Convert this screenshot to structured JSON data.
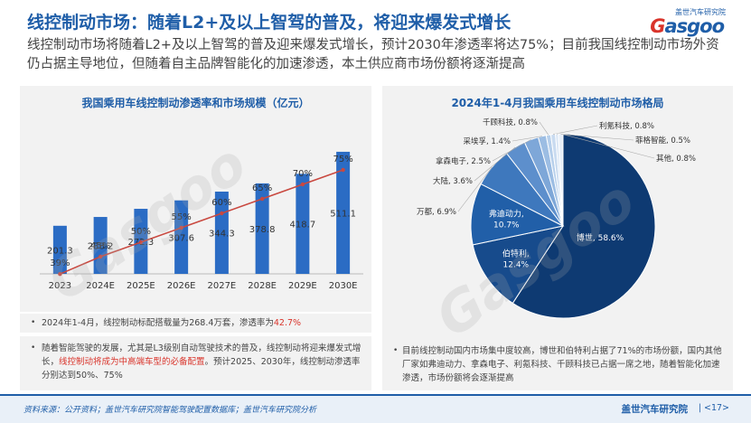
{
  "header": {
    "title": "线控制动市场：随着L2+及以上智驾的普及，将迎来爆发式增长",
    "subtitle": "线控制动市场将随着L2+及以上智驾的普及迎来爆发式增长，预计2030年渗透率将达75%；目前我国线控制动市场外资仍占据主导地位，但随着自主品牌智能化的加速渗透，本土供应商市场份额将逐渐提高"
  },
  "logo": {
    "small": "盖世汽车研究院",
    "main_g": "G",
    "main_rest": "asgoo"
  },
  "watermark": "Gasgoo",
  "chart_data": [
    {
      "type": "bar",
      "title": "我国乘用车线控制动渗透率和市场规模（亿元）",
      "categories": [
        "2023",
        "2024E",
        "2025E",
        "2026E",
        "2027E",
        "2028E",
        "2029E",
        "2030E"
      ],
      "series": [
        {
          "values": [
            201.3,
            238.2,
            272.3,
            307.6,
            344.3,
            378.8,
            418.7,
            511.1
          ],
          "color": "#2b6cc4"
        },
        {
          "type": "line",
          "values": [
            39,
            45,
            50,
            55,
            60,
            65,
            70,
            75
          ],
          "labels": [
            "39%",
            "45%",
            "50%",
            "55%",
            "60%",
            "65%",
            "70%",
            "75%"
          ],
          "color": "#c9483f"
        }
      ],
      "ylim": [
        0,
        560
      ],
      "line_ylim": [
        0,
        100
      ]
    },
    {
      "type": "pie",
      "title": "2024年1-4月我国乘用车线控制动市场格局",
      "slices": [
        {
          "label": "博世",
          "value": 58.6,
          "text": "博世, 58.6%",
          "color": "#0e3a72"
        },
        {
          "label": "伯特利",
          "value": 12.4,
          "text": "伯特利, 12.4%",
          "color": "#174b8c"
        },
        {
          "label": "弗迪动力",
          "value": 10.7,
          "text": "弗迪动力, 10.7%",
          "color": "#215fa8"
        },
        {
          "label": "万都",
          "value": 6.9,
          "text": "万都, 6.9%",
          "color": "#3e78bd"
        },
        {
          "label": "大陆",
          "value": 3.6,
          "text": "大陆, 3.6%",
          "color": "#5d8fcc"
        },
        {
          "label": "拿森电子",
          "value": 2.5,
          "text": "拿森电子, 2.5%",
          "color": "#7ea7d8"
        },
        {
          "label": "采埃孚",
          "value": 1.4,
          "text": "采埃孚, 1.4%",
          "color": "#9cbde3"
        },
        {
          "label": "千顾科技",
          "value": 0.8,
          "text": "千顾科技, 0.8%",
          "color": "#b6cfeb"
        },
        {
          "label": "利氪科技",
          "value": 0.8,
          "text": "利氪科技, 0.8%",
          "color": "#c9dbf0"
        },
        {
          "label": "菲格智能",
          "value": 0.5,
          "text": "菲格智能, 0.5%",
          "color": "#d8e5f4"
        },
        {
          "label": "其他",
          "value": 0.8,
          "text": "其他, 0.8%",
          "color": "#e6eef8"
        }
      ]
    }
  ],
  "notes": {
    "n1_pre": "2024年1-4月，线控制动标配搭载量为268.4万套，渗透率为",
    "n1_hl": "42.7%",
    "n2_pre": "随着智能驾驶的发展，尤其是L3级别自动驾驶技术的普及，线控制动将迎来爆发式增长，",
    "n2_hl": "线控制动将成为中高端车型的必备配置",
    "n2_post": "。预计2025、2030年，线控制动渗透率分别达到50%、75%",
    "n3": "目前线控制动国内市场集中度较高，博世和伯特利占据了71%的市场份额，国内其他厂家如弗迪动力、拿森电子、利氪科技、千顾科技已占据一席之地，随着智能化加速渗透，市场份额将会逐渐提高",
    "bullet": "•"
  },
  "footer": {
    "source": "资料来源：公开资料；盖世汽车研究院智能驾驶配置数据库；盖世汽车研究院分析",
    "org": "盖世汽车研究院",
    "page": "| <17>"
  }
}
